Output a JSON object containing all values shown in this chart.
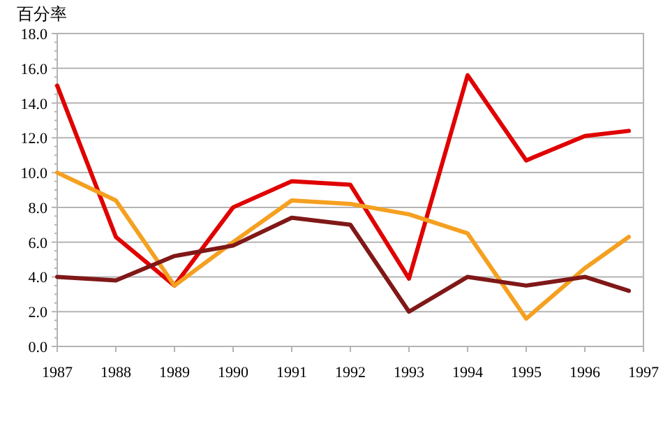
{
  "chart_data": {
    "type": "line",
    "ylabel": "百分率",
    "x": [
      1987,
      1988,
      1989,
      1990,
      1991,
      1992,
      1993,
      1994,
      1995,
      1996,
      1996.75
    ],
    "series": [
      {
        "color": "#e00000",
        "values": [
          15.0,
          6.3,
          3.5,
          8.0,
          9.5,
          9.3,
          3.9,
          15.6,
          10.7,
          12.1,
          12.4
        ]
      },
      {
        "color": "#f5a020",
        "values": [
          10.0,
          8.4,
          3.5,
          6.0,
          8.4,
          8.2,
          7.6,
          6.5,
          1.6,
          4.5,
          6.3
        ]
      },
      {
        "color": "#801818",
        "values": [
          4.0,
          3.8,
          5.2,
          5.8,
          7.4,
          7.0,
          2.0,
          4.0,
          3.5,
          4.0,
          3.2
        ]
      }
    ],
    "xlim": [
      1987,
      1997
    ],
    "xticks": [
      1987,
      1988,
      1989,
      1990,
      1991,
      1992,
      1993,
      1994,
      1995,
      1996,
      1997
    ],
    "ylim": [
      0,
      18
    ],
    "yticks": [
      {
        "value": 0,
        "label": "0.0"
      },
      {
        "value": 2,
        "label": "2.0"
      },
      {
        "value": 4,
        "label": "4.0"
      },
      {
        "value": 6,
        "label": "6.0"
      },
      {
        "value": 8,
        "label": "8.0"
      },
      {
        "value": 10,
        "label": "10.0"
      },
      {
        "value": 12,
        "label": "12.0"
      },
      {
        "value": 14,
        "label": "14.0"
      },
      {
        "value": 16,
        "label": "16.0"
      },
      {
        "value": 18,
        "label": "18.0"
      }
    ],
    "grid": "y",
    "marker": "none",
    "line_style": "solid"
  }
}
